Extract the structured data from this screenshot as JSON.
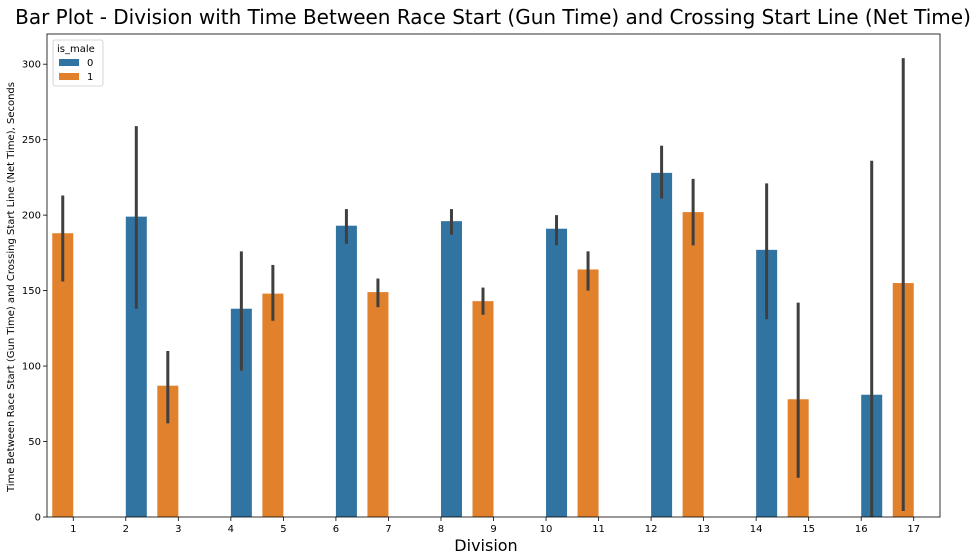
{
  "chart_data": {
    "type": "bar",
    "title": "Bar Plot - Division with Time Between Race Start (Gun Time) and Crossing Start Line (Net Time)",
    "xlabel": "Division",
    "ylabel": "Time Between Race Start (Gun Time) and Crossing Start Line (Net Time), Seconds",
    "categories": [
      "1",
      "2",
      "3",
      "4",
      "5",
      "6",
      "7",
      "8",
      "9",
      "10",
      "11",
      "12",
      "13",
      "14",
      "15",
      "16",
      "17"
    ],
    "ylim": [
      0,
      320
    ],
    "yticks": [
      "0",
      "50",
      "100",
      "150",
      "200",
      "250",
      "300"
    ],
    "legend": {
      "title": "is_male",
      "position": "top-left"
    },
    "series": [
      {
        "name": "0",
        "color": "#3274a1",
        "points": [
          {
            "division": "2",
            "value": 199,
            "ci": [
              138,
              259
            ]
          },
          {
            "division": "4",
            "value": 138,
            "ci": [
              97,
              176
            ]
          },
          {
            "division": "6",
            "value": 193,
            "ci": [
              181,
              204
            ]
          },
          {
            "division": "8",
            "value": 196,
            "ci": [
              187,
              204
            ]
          },
          {
            "division": "10",
            "value": 191,
            "ci": [
              180,
              200
            ]
          },
          {
            "division": "12",
            "value": 228,
            "ci": [
              211,
              246
            ]
          },
          {
            "division": "14",
            "value": 177,
            "ci": [
              131,
              221
            ]
          },
          {
            "division": "16",
            "value": 81,
            "ci": [
              0,
              236
            ]
          }
        ]
      },
      {
        "name": "1",
        "color": "#e1812c",
        "points": [
          {
            "division": "1",
            "value": 188,
            "ci": [
              156,
              213
            ]
          },
          {
            "division": "3",
            "value": 87,
            "ci": [
              62,
              110
            ]
          },
          {
            "division": "5",
            "value": 148,
            "ci": [
              130,
              167
            ]
          },
          {
            "division": "7",
            "value": 149,
            "ci": [
              139,
              158
            ]
          },
          {
            "division": "9",
            "value": 143,
            "ci": [
              134,
              152
            ]
          },
          {
            "division": "11",
            "value": 164,
            "ci": [
              150,
              176
            ]
          },
          {
            "division": "13",
            "value": 202,
            "ci": [
              180,
              224
            ]
          },
          {
            "division": "15",
            "value": 78,
            "ci": [
              26,
              142
            ]
          },
          {
            "division": "17",
            "value": 155,
            "ci": [
              4,
              304
            ]
          }
        ]
      }
    ]
  }
}
